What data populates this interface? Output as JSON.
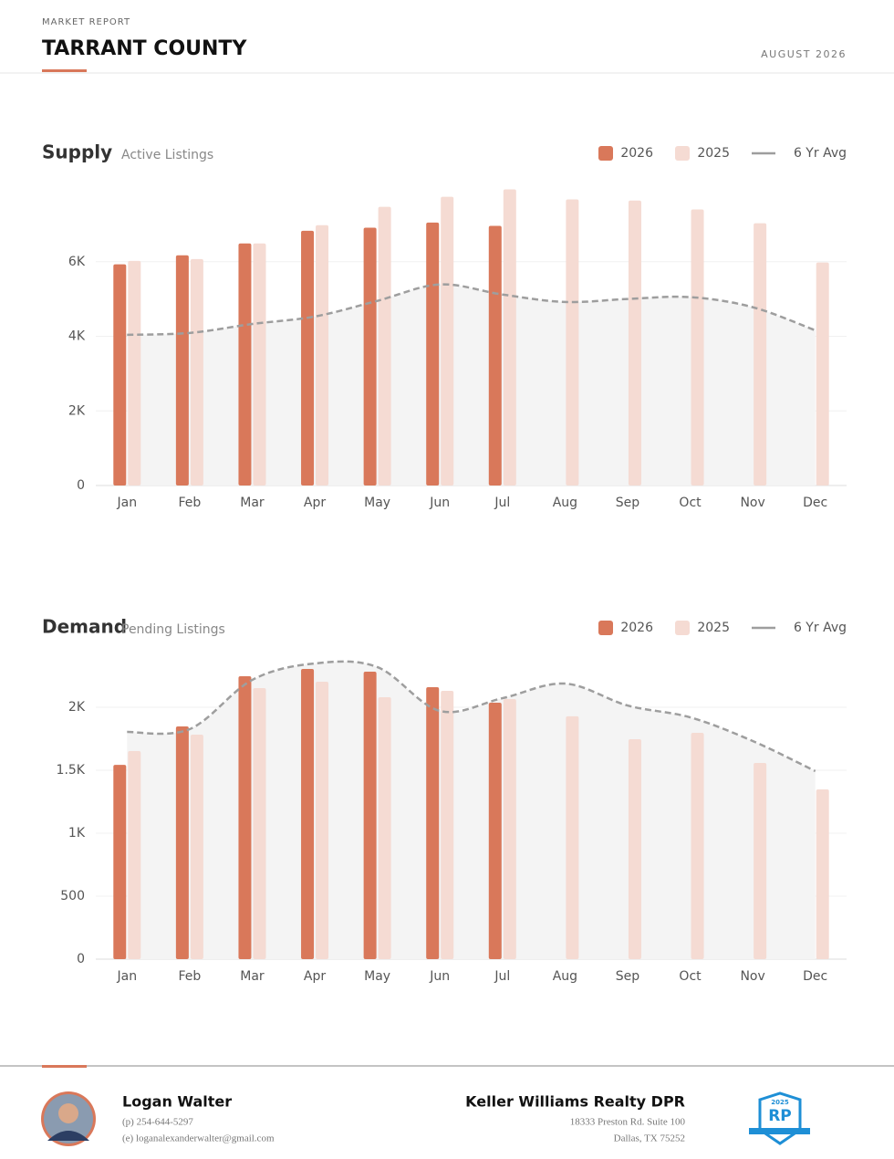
{
  "header": {
    "kicker": "MARKET REPORT",
    "title": "TARRANT COUNTY",
    "date": "AUGUST 2026"
  },
  "chart_data": [
    {
      "type": "bar",
      "title": "Supply",
      "subtitle": "Active Listings",
      "categories": [
        "Jan",
        "Feb",
        "Mar",
        "Apr",
        "May",
        "Jun",
        "Jul",
        "Aug",
        "Sep",
        "Oct",
        "Nov",
        "Dec"
      ],
      "series": [
        {
          "name": "2026",
          "type": "bar",
          "color": "#d9785a",
          "values": [
            5930,
            6170,
            6490,
            6830,
            6910,
            7050,
            6960,
            null,
            null,
            null,
            null,
            null
          ]
        },
        {
          "name": "2025",
          "type": "bar",
          "color": "#f5dbd3",
          "values": [
            6020,
            6070,
            6490,
            6980,
            7470,
            7740,
            7940,
            7670,
            7640,
            7400,
            7030,
            5980
          ]
        },
        {
          "name": "6 Yr Avg",
          "type": "line",
          "color": "#9e9e9e",
          "values": [
            4040,
            4090,
            4330,
            4530,
            4950,
            5390,
            5120,
            4920,
            5000,
            5050,
            4780,
            4160
          ]
        }
      ],
      "ylim": [
        0,
        8000
      ],
      "yticks": [
        0,
        {
          "value": 2000,
          "label": "2K"
        },
        {
          "value": 4000,
          "label": "4K"
        },
        {
          "value": 6000,
          "label": "6K"
        }
      ],
      "grid": true
    },
    {
      "type": "bar",
      "title": "Demand",
      "subtitle": "Pending Listings",
      "categories": [
        "Jan",
        "Feb",
        "Mar",
        "Apr",
        "May",
        "Jun",
        "Jul",
        "Aug",
        "Sep",
        "Oct",
        "Nov",
        "Dec"
      ],
      "series": [
        {
          "name": "2026",
          "type": "bar",
          "color": "#d9785a",
          "values": [
            1543,
            1848,
            2246,
            2304,
            2283,
            2159,
            2036,
            null,
            null,
            null,
            null,
            null
          ]
        },
        {
          "name": "2025",
          "type": "bar",
          "color": "#f5dbd3",
          "values": [
            1652,
            1783,
            2152,
            2203,
            2080,
            2130,
            2065,
            1928,
            1746,
            1797,
            1558,
            1348
          ]
        },
        {
          "name": "6 Yr Avg",
          "type": "line",
          "color": "#9e9e9e",
          "values": [
            1804,
            1826,
            2217,
            2348,
            2319,
            1971,
            2072,
            2188,
            2014,
            1920,
            1732,
            1493
          ]
        }
      ],
      "ylim": [
        0,
        2500
      ],
      "yticks": [
        0,
        500,
        {
          "value": 1000,
          "label": "1K"
        },
        {
          "value": 1500,
          "label": "1.5K"
        },
        {
          "value": 2000,
          "label": "2K"
        }
      ],
      "grid": true
    }
  ],
  "footer": {
    "name": "Logan Walter",
    "phone": "(p) 254-644-5297",
    "email": "(e) loganalexanderwalter@gmail.com",
    "company": "Keller Williams Realty DPR",
    "address1": "18333 Preston Rd. Suite 100",
    "address2": "Dallas, TX 75252",
    "badge_year": "2025",
    "badge_mark": "RP"
  }
}
